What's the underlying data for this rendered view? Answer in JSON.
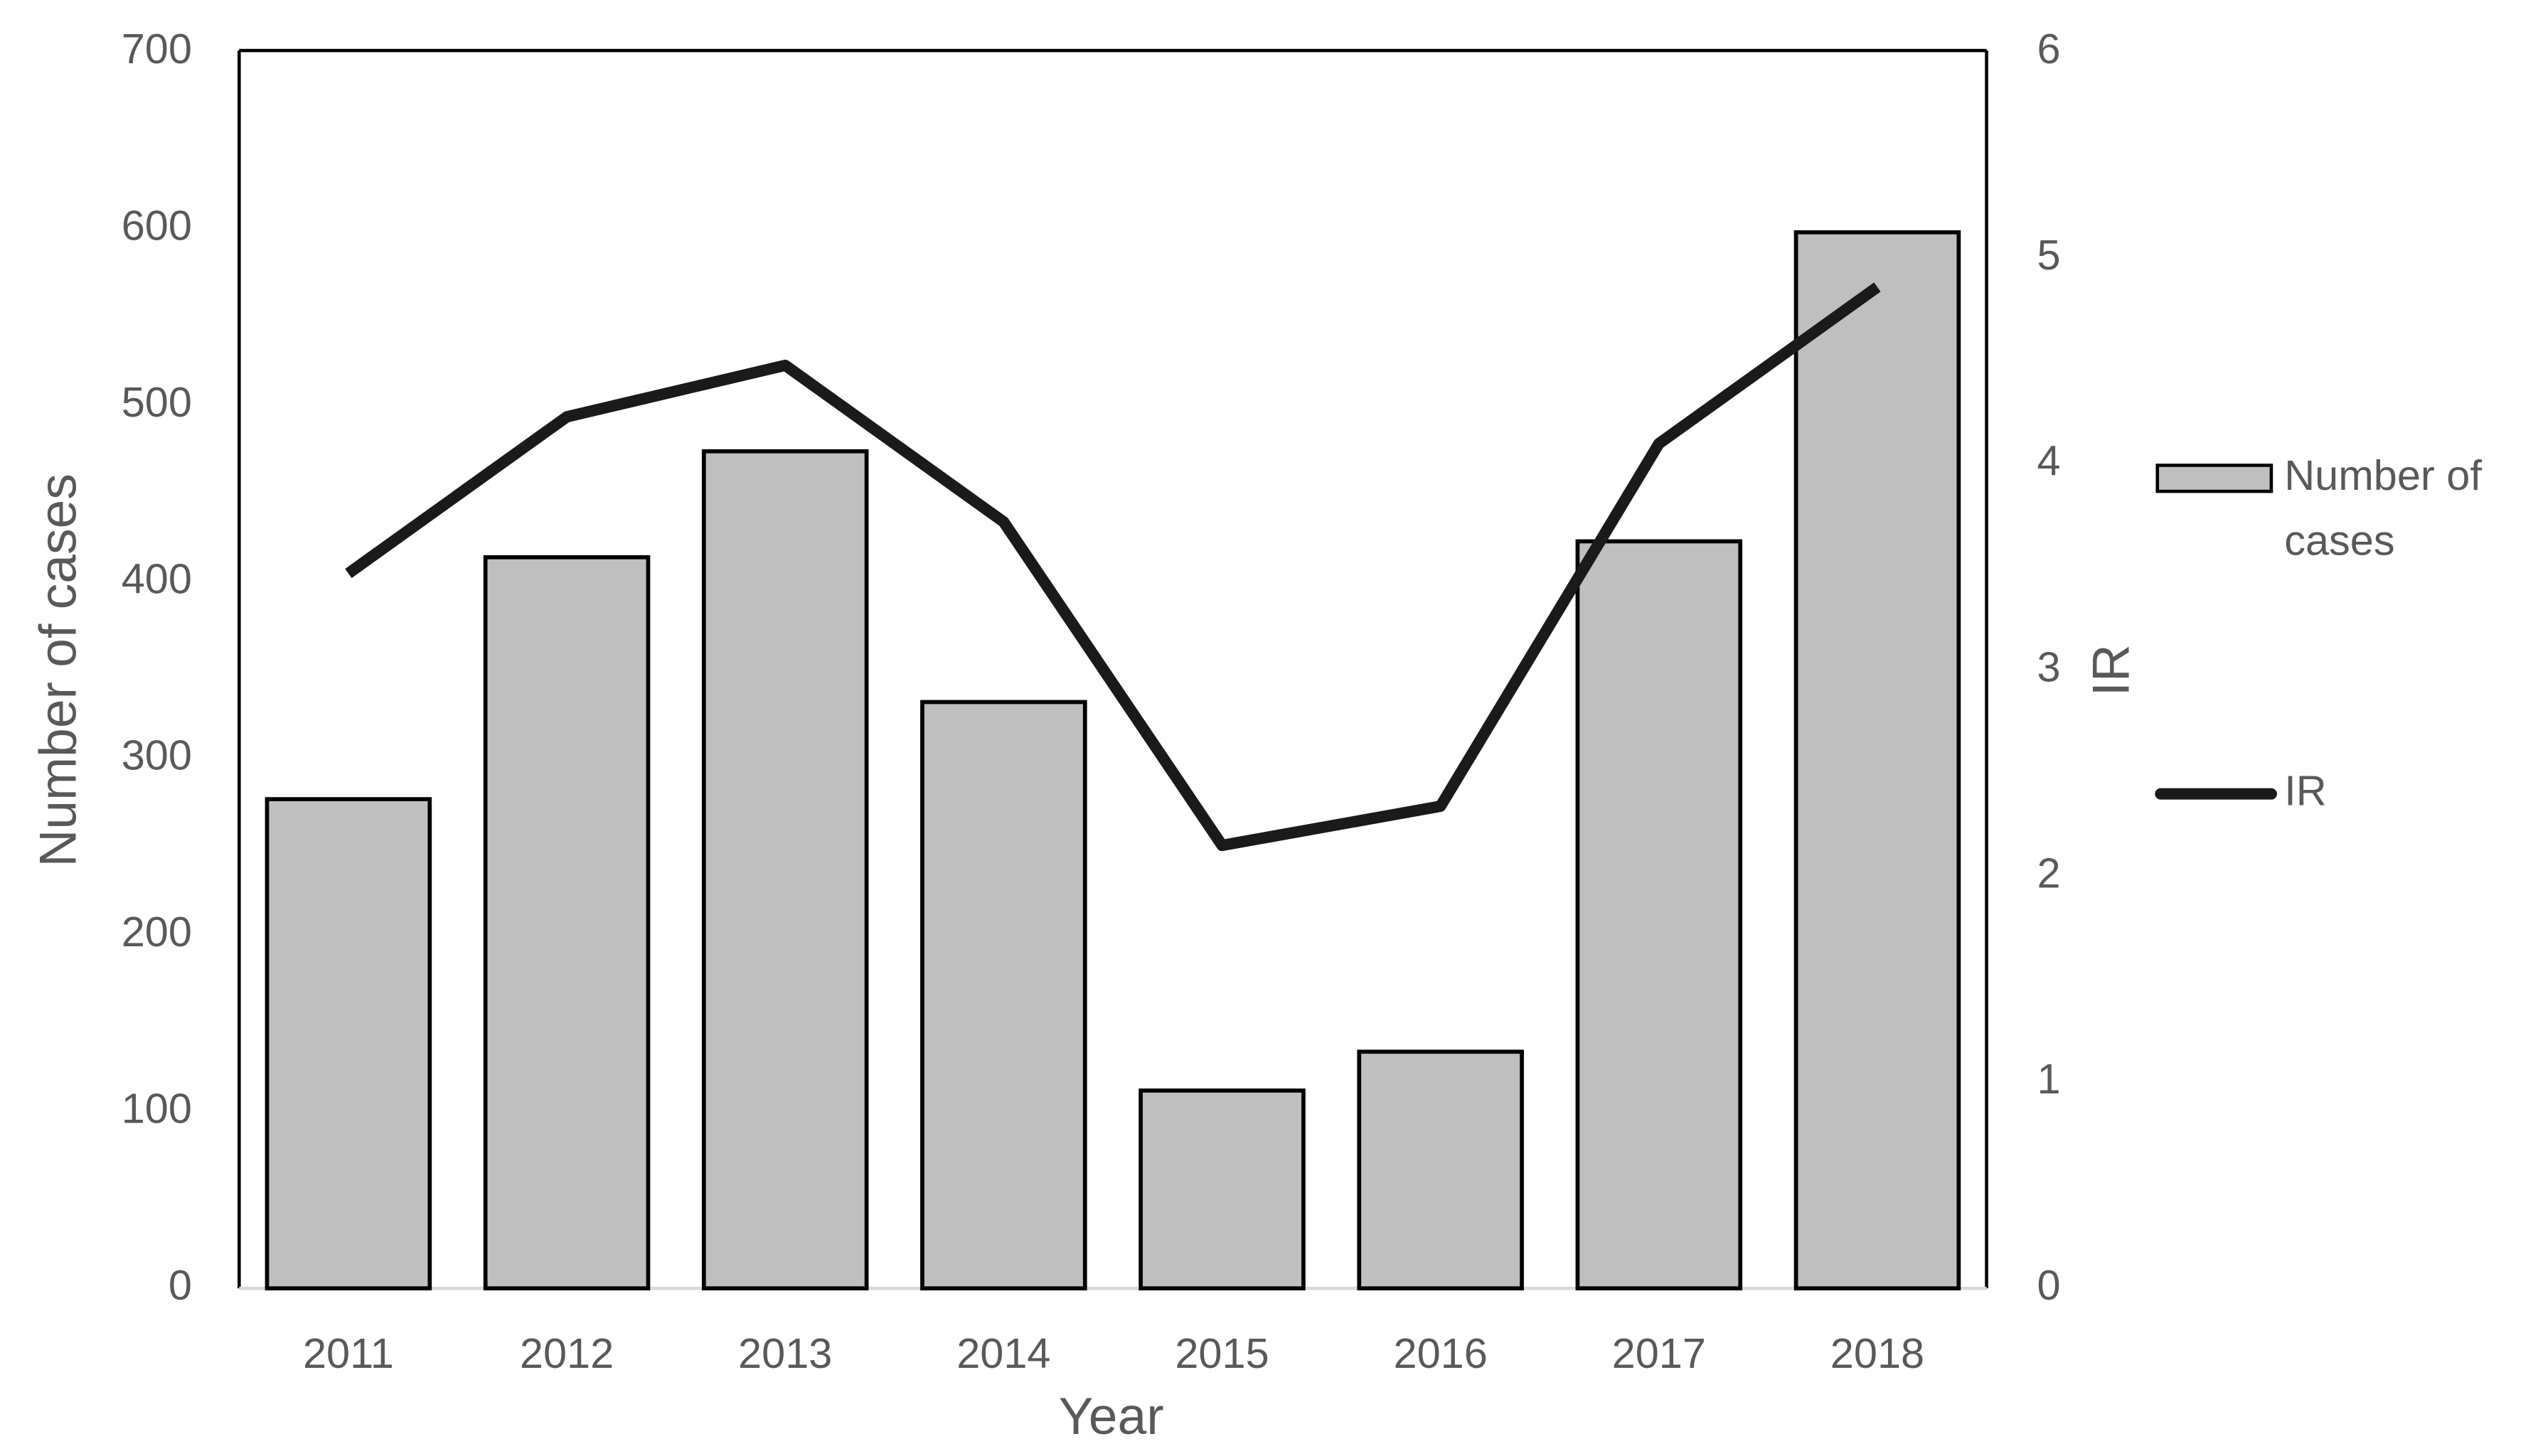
{
  "chart_data": {
    "type": "bar-line",
    "categories": [
      "2011",
      "2012",
      "2013",
      "2014",
      "2015",
      "2016",
      "2017",
      "2018"
    ],
    "series": [
      {
        "name": "Number of cases",
        "type": "bar",
        "color": "#bfbfbf",
        "values": [
          277,
          414,
          474,
          332,
          112,
          134,
          423,
          598
        ]
      },
      {
        "name": "IR",
        "type": "line",
        "axis": "y2",
        "color": "#1a1a1a",
        "values": [
          3.47,
          4.23,
          4.48,
          3.72,
          2.15,
          2.34,
          4.1,
          4.86
        ]
      }
    ],
    "x_label": "Year",
    "y_label": "Number of cases",
    "y2_label": "IR",
    "ylim": [
      0,
      700
    ],
    "yticks": [
      0,
      100,
      200,
      300,
      400,
      500,
      600,
      700
    ],
    "y2lim": [
      0,
      6
    ],
    "y2ticks": [
      0,
      1,
      2,
      3,
      4,
      5,
      6
    ],
    "legend": "right",
    "grid": false
  }
}
